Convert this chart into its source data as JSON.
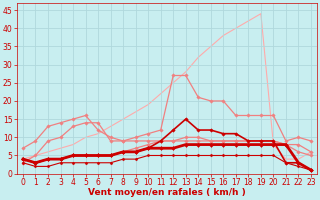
{
  "background_color": "#c8eef0",
  "grid_color": "#b0d8dc",
  "xlabel": "Vent moyen/en rafales ( km/h )",
  "xlabel_color": "#cc0000",
  "xlabel_fontsize": 6.5,
  "tick_color": "#cc0000",
  "tick_fontsize": 5.5,
  "xlim": [
    -0.5,
    23.5
  ],
  "ylim": [
    0,
    47
  ],
  "yticks": [
    0,
    5,
    10,
    15,
    20,
    25,
    30,
    35,
    40,
    45
  ],
  "xticks": [
    0,
    1,
    2,
    3,
    4,
    5,
    6,
    7,
    8,
    9,
    10,
    11,
    12,
    13,
    14,
    15,
    16,
    17,
    18,
    19,
    20,
    21,
    22,
    23
  ],
  "lines": [
    {
      "x": [
        0,
        1,
        2,
        3,
        4,
        5,
        6,
        7,
        8,
        9,
        10,
        11,
        12,
        13,
        14,
        15,
        16,
        17,
        18,
        19,
        20,
        21,
        22,
        23
      ],
      "y": [
        4,
        5,
        6,
        7,
        8,
        10,
        11,
        13,
        15,
        17,
        19,
        22,
        25,
        28,
        32,
        35,
        38,
        40,
        42,
        44,
        8,
        4,
        4,
        6
      ],
      "color": "#ffaaaa",
      "linewidth": 0.8,
      "marker": null,
      "markersize": 0,
      "zorder": 1
    },
    {
      "x": [
        0,
        1,
        2,
        3,
        4,
        5,
        6,
        7,
        8,
        9,
        10,
        11,
        12,
        13,
        14,
        15,
        16,
        17,
        18,
        19,
        20,
        21,
        22,
        23
      ],
      "y": [
        3,
        5,
        9,
        10,
        13,
        14,
        14,
        9,
        9,
        10,
        11,
        12,
        27,
        27,
        21,
        20,
        20,
        16,
        16,
        16,
        16,
        9,
        10,
        9
      ],
      "color": "#f08080",
      "linewidth": 0.9,
      "marker": "D",
      "markersize": 1.8,
      "zorder": 2
    },
    {
      "x": [
        0,
        1,
        2,
        3,
        4,
        5,
        6,
        7,
        8,
        9,
        10,
        11,
        12,
        13,
        14,
        15,
        16,
        17,
        18,
        19,
        20,
        21,
        22,
        23
      ],
      "y": [
        7,
        9,
        13,
        14,
        15,
        16,
        12,
        10,
        9,
        9,
        9,
        9,
        9,
        9,
        9,
        9,
        9,
        9,
        9,
        9,
        9,
        8,
        8,
        6
      ],
      "color": "#f08080",
      "linewidth": 0.9,
      "marker": "D",
      "markersize": 1.8,
      "zorder": 2
    },
    {
      "x": [
        0,
        1,
        2,
        3,
        4,
        5,
        6,
        7,
        8,
        9,
        10,
        11,
        12,
        13,
        14,
        15,
        16,
        17,
        18,
        19,
        20,
        21,
        22,
        23
      ],
      "y": [
        4,
        3,
        4,
        4,
        5,
        5,
        5,
        5,
        6,
        7,
        8,
        9,
        9,
        10,
        10,
        9,
        9,
        9,
        9,
        9,
        9,
        8,
        6,
        5
      ],
      "color": "#f08080",
      "linewidth": 0.9,
      "marker": "D",
      "markersize": 1.8,
      "zorder": 3
    },
    {
      "x": [
        0,
        1,
        2,
        3,
        4,
        5,
        6,
        7,
        8,
        9,
        10,
        11,
        12,
        13,
        14,
        15,
        16,
        17,
        18,
        19,
        20,
        21,
        22,
        23
      ],
      "y": [
        4,
        3,
        4,
        4,
        5,
        5,
        5,
        5,
        6,
        6,
        7,
        7,
        7,
        8,
        8,
        8,
        8,
        8,
        8,
        8,
        8,
        8,
        3,
        1
      ],
      "color": "#cc0000",
      "linewidth": 2.0,
      "marker": "D",
      "markersize": 2.0,
      "zorder": 5
    },
    {
      "x": [
        0,
        1,
        2,
        3,
        4,
        5,
        6,
        7,
        8,
        9,
        10,
        11,
        12,
        13,
        14,
        15,
        16,
        17,
        18,
        19,
        20,
        21,
        22,
        23
      ],
      "y": [
        4,
        3,
        4,
        4,
        5,
        5,
        5,
        5,
        6,
        6,
        7,
        9,
        12,
        15,
        12,
        12,
        11,
        11,
        9,
        9,
        9,
        3,
        3,
        1
      ],
      "color": "#cc0000",
      "linewidth": 1.2,
      "marker": "D",
      "markersize": 1.8,
      "zorder": 4
    },
    {
      "x": [
        0,
        1,
        2,
        3,
        4,
        5,
        6,
        7,
        8,
        9,
        10,
        11,
        12,
        13,
        14,
        15,
        16,
        17,
        18,
        19,
        20,
        21,
        22,
        23
      ],
      "y": [
        3,
        2,
        2,
        3,
        3,
        3,
        3,
        3,
        4,
        4,
        5,
        5,
        5,
        5,
        5,
        5,
        5,
        5,
        5,
        5,
        5,
        3,
        2,
        1
      ],
      "color": "#cc0000",
      "linewidth": 0.8,
      "marker": "D",
      "markersize": 1.5,
      "zorder": 4
    }
  ]
}
